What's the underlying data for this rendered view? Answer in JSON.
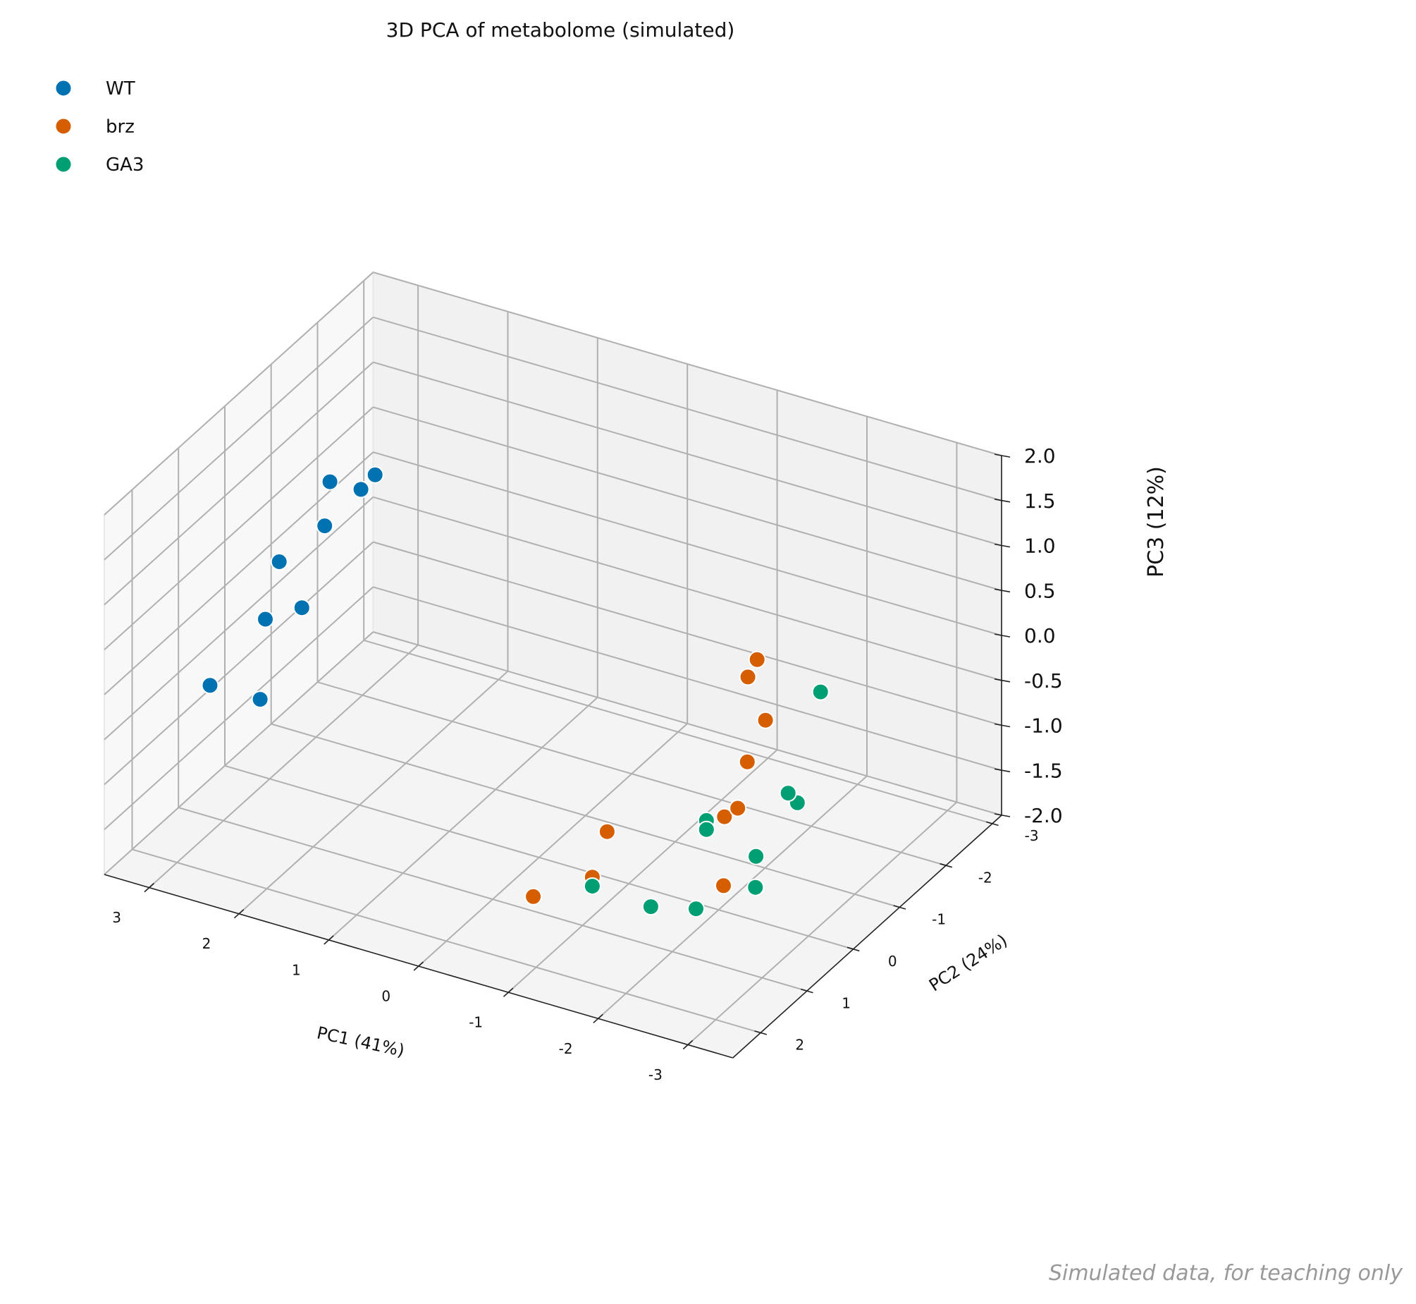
{
  "chart_data": {
    "type": "scatter",
    "projection": "3d",
    "title": "3D PCA of metabolome (simulated)",
    "xlabel": "PC1 (41%)",
    "ylabel": "PC2 (24%)",
    "zlabel": "PC3 (12%)",
    "x_ticks": [
      "3",
      "2",
      "1",
      "0",
      "-1",
      "-2",
      "-3"
    ],
    "y_ticks": [
      "-3",
      "-2",
      "-1",
      "0",
      "1",
      "2"
    ],
    "z_ticks": [
      "2.0",
      "1.5",
      "1.0",
      "0.5",
      "0.0",
      "-0.5",
      "-1.0",
      "-1.5",
      "-2.0"
    ],
    "xlim": [
      -3.5,
      3.5
    ],
    "ylim": [
      -3.2,
      2.6
    ],
    "zlim": [
      -2.0,
      2.0
    ],
    "grid": true,
    "legend_position": "top-left",
    "footnote": "Simulated data, for teaching only",
    "series": [
      {
        "name": "WT",
        "color": "#0072b2",
        "points": [
          {
            "x": 2.5,
            "y": -1.0,
            "z": 0.9
          },
          {
            "x": 2.6,
            "y": -1.5,
            "z": 0.8
          },
          {
            "x": 2.8,
            "y": -0.8,
            "z": 0.5
          },
          {
            "x": 3.0,
            "y": -1.3,
            "z": 0.7
          },
          {
            "x": 3.1,
            "y": -0.4,
            "z": 0.2
          },
          {
            "x": 2.9,
            "y": -0.5,
            "z": -0.3
          },
          {
            "x": 3.1,
            "y": -0.1,
            "z": -0.3
          },
          {
            "x": 3.2,
            "y": 0.9,
            "z": -0.6
          },
          {
            "x": 2.9,
            "y": 0.4,
            "z": -0.9
          }
        ]
      },
      {
        "name": "brz",
        "color": "#d55e00",
        "points": [
          {
            "x": -1.5,
            "y": -1.8,
            "z": -0.2
          },
          {
            "x": -1.5,
            "y": -1.6,
            "z": -0.3
          },
          {
            "x": -1.8,
            "y": -1.4,
            "z": -0.6
          },
          {
            "x": -1.7,
            "y": -1.2,
            "z": -1.0
          },
          {
            "x": -1.8,
            "y": -0.8,
            "z": -1.3
          },
          {
            "x": -1.6,
            "y": -0.9,
            "z": -1.5
          },
          {
            "x": -0.5,
            "y": -0.5,
            "z": -1.8
          },
          {
            "x": -0.8,
            "y": 0.4,
            "z": -1.8
          },
          {
            "x": -1.9,
            "y": -0.3,
            "z": -1.9
          },
          {
            "x": -0.4,
            "y": 0.9,
            "z": -1.9
          }
        ]
      },
      {
        "name": "GA3",
        "color": "#009e73",
        "points": [
          {
            "x": -2.0,
            "y": -2.2,
            "z": -0.6
          },
          {
            "x": -2.0,
            "y": -1.5,
            "z": -1.4
          },
          {
            "x": -2.0,
            "y": -1.7,
            "z": -1.6
          },
          {
            "x": -1.4,
            "y": -0.9,
            "z": -1.6
          },
          {
            "x": -1.4,
            "y": -0.9,
            "z": -1.7
          },
          {
            "x": -1.9,
            "y": -1.0,
            "z": -1.9
          },
          {
            "x": -0.8,
            "y": 0.4,
            "z": -1.9
          },
          {
            "x": -2.1,
            "y": -0.6,
            "z": -2.0
          },
          {
            "x": -1.4,
            "y": 0.3,
            "z": -2.0
          },
          {
            "x": -1.8,
            "y": 0.1,
            "z": -2.0
          }
        ]
      }
    ]
  }
}
